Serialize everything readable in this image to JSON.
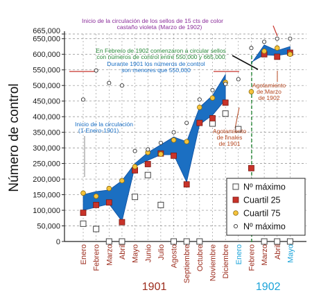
{
  "chart_data": {
    "type": "line",
    "ylabel": "Número de control",
    "y_ticks": [
      "0",
      "50,000",
      "100,000",
      "150,000",
      "200,000",
      "250,000",
      "300,000",
      "350,000",
      "400,000",
      "450,000",
      "500,000",
      "550,000",
      "600,000",
      "650,000",
      "665,000"
    ],
    "ylim": [
      0,
      665000
    ],
    "grid": true,
    "legend_position": "bottom-right",
    "categories": [
      "Enero",
      "Febrero",
      "Marzo",
      "Abril",
      "Mayo",
      "Junio",
      "Julio",
      "Agosto",
      "Septiembre",
      "Octubre",
      "Noviembre",
      "Diciembre",
      "Enero",
      "Febrero",
      "Marzo",
      "Abril",
      "Mayo"
    ],
    "category_colors": [
      "#9b2b1c",
      "#9b2b1c",
      "#9b2b1c",
      "#9b2b1c",
      "#9b2b1c",
      "#9b2b1c",
      "#9b2b1c",
      "#9b2b1c",
      "#9b2b1c",
      "#9b2b1c",
      "#9b2b1c",
      "#9b2b1c",
      "#1aa3d9",
      "#9b2b1c",
      "#9b2b1c",
      "#9b2b1c",
      "#1aa3d9"
    ],
    "year_labels": [
      {
        "text": "1901",
        "color": "#9b2b1c",
        "center_index": 5.5
      },
      {
        "text": "1902",
        "color": "#1aa3d9",
        "center_index": 14.3
      }
    ],
    "band_lower": [
      100000,
      110000,
      120000,
      65000,
      240000,
      260000,
      278000,
      278000,
      190000,
      375000,
      405000,
      455000,
      null,
      575000,
      598000,
      596000,
      602000
    ],
    "band_upper": [
      150000,
      160000,
      165000,
      195000,
      250000,
      285000,
      310000,
      335000,
      320000,
      430000,
      468000,
      535000,
      null,
      570000,
      630000,
      612000,
      625000
    ],
    "series": [
      {
        "name": "Nº máximo",
        "marker": "square",
        "values": [
          57000,
          40000,
          0,
          0,
          143000,
          213000,
          117000,
          0,
          0,
          0,
          378000,
          410000,
          360000,
          null,
          0,
          0,
          0
        ]
      },
      {
        "name": "Cuartil 25",
        "marker": "red-square",
        "values": [
          92000,
          117000,
          125000,
          62000,
          228000,
          248000,
          282000,
          275000,
          183000,
          380000,
          395000,
          445000,
          null,
          235000,
          600000,
          592000,
          605000
        ]
      },
      {
        "name": "Cuartil 75",
        "marker": "yellow-circle",
        "values": [
          155000,
          145000,
          170000,
          195000,
          240000,
          285000,
          280000,
          325000,
          320000,
          430000,
          460000,
          510000,
          null,
          480000,
          610000,
          620000,
          600000
        ]
      },
      {
        "name": "Nº máximo",
        "marker": "open-circle",
        "values": [
          455000,
          548000,
          508000,
          500000,
          290000,
          295000,
          316000,
          350000,
          380000,
          455000,
          485000,
          505000,
          520000,
          620000,
          640000,
          650000,
          650000
        ]
      }
    ],
    "annotations": [
      {
        "text": "Inicio de la circulación de los sellos de 15 cts de color",
        "color": "#8a2d9a"
      },
      {
        "text": "castaño violeta (Marzo de 1902)",
        "color": "#8a2d9a"
      },
      {
        "text": "En Febrero de 1902 comenzaron a circular sellos",
        "color": "#2a8a3a"
      },
      {
        "text": "con números de control entre 550,000 y 665,000",
        "color": "#2a8a3a"
      },
      {
        "text": "Durante 1901 los números de control",
        "color": "#1a6fc4"
      },
      {
        "text": "son menores que 550,000",
        "color": "#1a6fc4"
      },
      {
        "text": "Inicio de la circulación",
        "color": "#1a6fc4"
      },
      {
        "text": "(1-Enero-1901)",
        "color": "#1a6fc4"
      },
      {
        "text": "Agotamiento",
        "color": "#b5461e"
      },
      {
        "text": "de finales",
        "color": "#b5461e"
      },
      {
        "text": "de 1901",
        "color": "#b5461e"
      },
      {
        "text": "Agotamiento",
        "color": "#b5461e"
      },
      {
        "text": "de Marzo",
        "color": "#b5461e"
      },
      {
        "text": "de 1902",
        "color": "#b5461e"
      }
    ],
    "colors": {
      "band": "#1b6fc2",
      "band_edge": "#0d4fa0",
      "quartile25": "#c8332a",
      "quartile75": "#f5c33b",
      "grid": "#888888",
      "text": "#1a1a1a"
    }
  }
}
